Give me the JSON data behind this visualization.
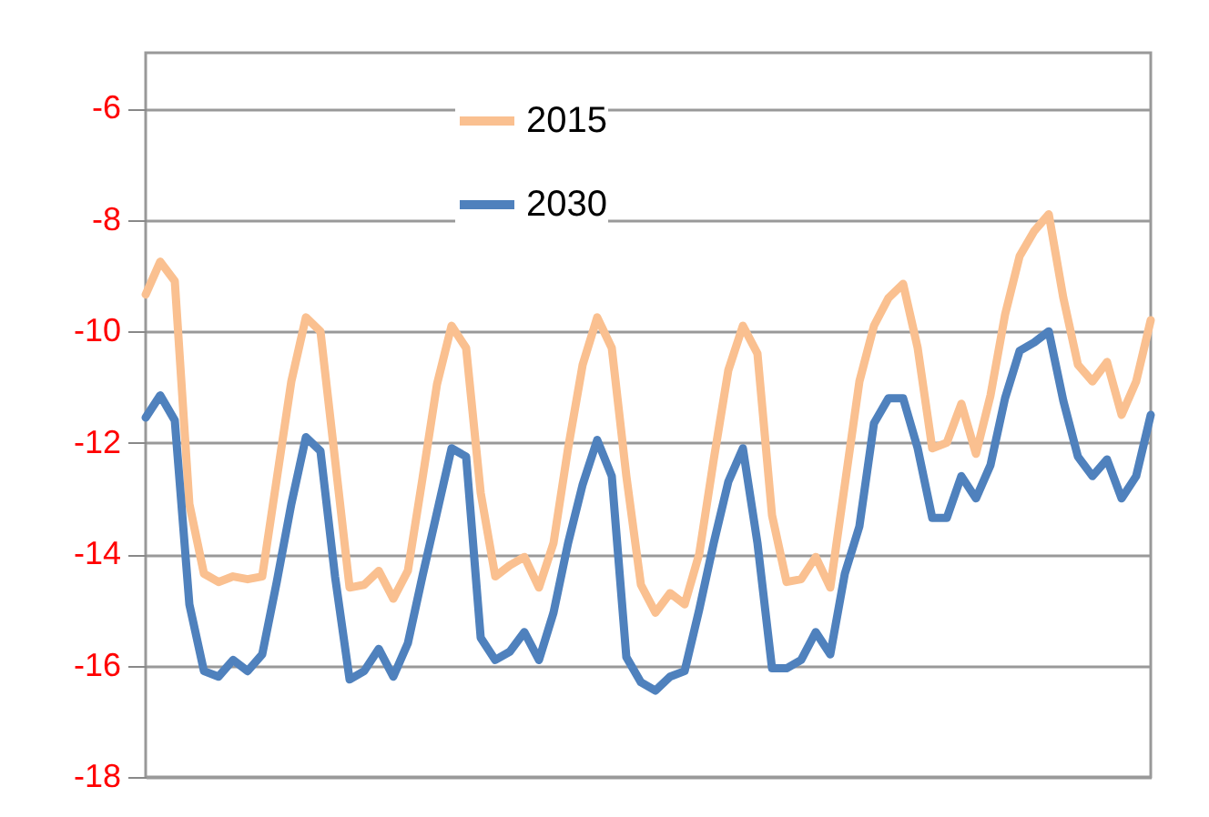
{
  "chart_data": {
    "type": "line",
    "categories": [
      null,
      null,
      null,
      null,
      null,
      null,
      null,
      null,
      null,
      null,
      null,
      null,
      null,
      null,
      null,
      null,
      null,
      null,
      null,
      null,
      null,
      null,
      null,
      null,
      null,
      null,
      null,
      null,
      null,
      null,
      null,
      null,
      null,
      null,
      null,
      null,
      null,
      null,
      null,
      null,
      null,
      null,
      null,
      null,
      null,
      null,
      null,
      null,
      null,
      null,
      null,
      null,
      null,
      null,
      null,
      null,
      null,
      null,
      null,
      null,
      null,
      null,
      null,
      null,
      null,
      null,
      null,
      null,
      null,
      null
    ],
    "ylim": [
      -18,
      -5
    ],
    "yticks": [
      -18,
      -16,
      -14,
      -12,
      -10,
      -8,
      -6
    ],
    "grid": "y",
    "legend": "top",
    "tick_labels": "y",
    "line_style": "solid",
    "marker": "none",
    "series": [
      {
        "name": "2015",
        "color": "#fac090",
        "values": [
          -9.34,
          -8.75,
          -9.1,
          -13.1,
          -14.35,
          -14.5,
          -14.4,
          -14.45,
          -14.4,
          -12.65,
          -10.9,
          -9.75,
          -10.0,
          -12.3,
          -14.6,
          -14.55,
          -14.3,
          -14.8,
          -14.3,
          -12.65,
          -10.95,
          -9.9,
          -10.3,
          -12.9,
          -14.4,
          -14.2,
          -14.05,
          -14.6,
          -13.8,
          -12.1,
          -10.6,
          -9.75,
          -10.3,
          -12.6,
          -14.55,
          -15.05,
          -14.7,
          -14.9,
          -14.0,
          -12.3,
          -10.7,
          -9.9,
          -10.4,
          -13.3,
          -14.5,
          -14.45,
          -14.05,
          -14.6,
          -12.75,
          -10.9,
          -9.9,
          -9.4,
          -9.15,
          -10.3,
          -12.1,
          -12.0,
          -11.3,
          -12.2,
          -11.15,
          -9.7,
          -8.65,
          -8.2,
          -7.9,
          -9.4,
          -10.6,
          -10.9,
          -10.55,
          -11.5,
          -10.9,
          -9.8
        ]
      },
      {
        "name": "2030",
        "color": "#4f81bd",
        "values": [
          -11.55,
          -11.15,
          -11.6,
          -14.9,
          -16.1,
          -16.2,
          -15.9,
          -16.1,
          -15.8,
          -14.5,
          -13.1,
          -11.9,
          -12.15,
          -14.4,
          -16.25,
          -16.1,
          -15.7,
          -16.2,
          -15.6,
          -14.4,
          -13.25,
          -12.1,
          -12.25,
          -15.5,
          -15.9,
          -15.75,
          -15.4,
          -15.9,
          -15.05,
          -13.8,
          -12.75,
          -11.95,
          -12.6,
          -15.85,
          -16.3,
          -16.45,
          -16.2,
          -16.1,
          -15.0,
          -13.8,
          -12.7,
          -12.1,
          -13.8,
          -16.05,
          -16.05,
          -15.9,
          -15.4,
          -15.8,
          -14.35,
          -13.5,
          -11.65,
          -11.2,
          -11.2,
          -12.1,
          -13.35,
          -13.35,
          -12.6,
          -13.0,
          -12.4,
          -11.2,
          -10.35,
          -10.2,
          -10.0,
          -11.25,
          -12.25,
          -12.6,
          -12.3,
          -13.0,
          -12.6,
          -11.5
        ]
      }
    ]
  }
}
